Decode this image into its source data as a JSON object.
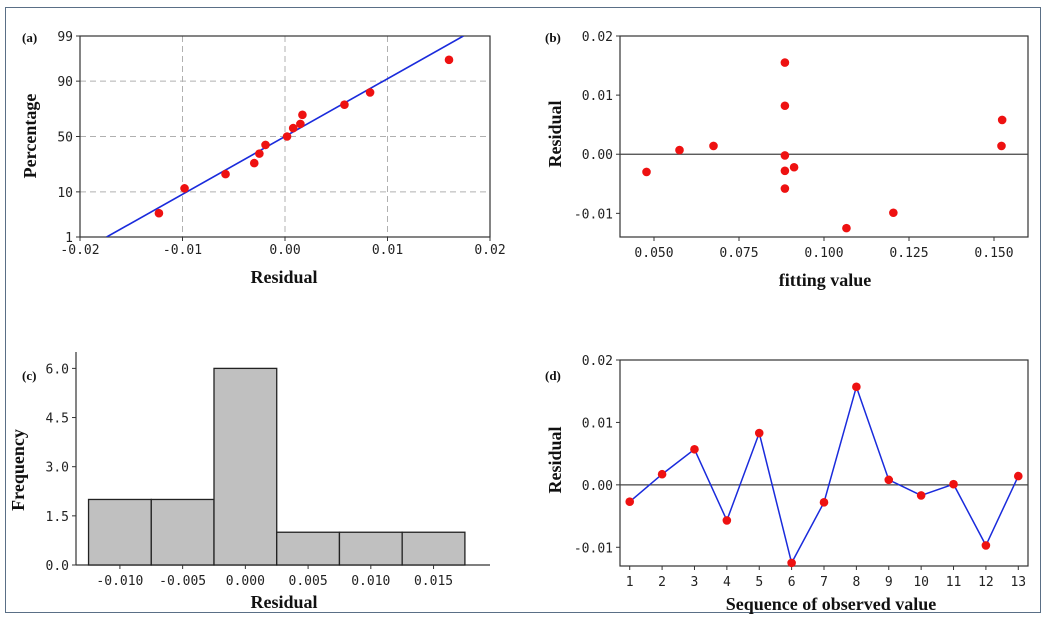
{
  "chart_data": [
    {
      "panel": "(a)",
      "type": "scatter",
      "xlabel": "Residual",
      "ylabel": "Percentage",
      "xlim": [
        -0.02,
        0.02
      ],
      "xticks": [
        -0.02,
        -0.01,
        0.0,
        0.01,
        0.02
      ],
      "xtick_labels": [
        "-0.02",
        "-0.01",
        "0.00",
        "0.01",
        "0.02"
      ],
      "yticks": [
        1,
        10,
        50,
        90,
        99
      ],
      "ytick_labels": [
        "1",
        "10",
        "50",
        "90",
        "99"
      ],
      "y_scale": "normal-probability",
      "grid": true,
      "points": [
        {
          "x": -0.0123,
          "y": 3.8
        },
        {
          "x": -0.0098,
          "y": 11.5
        },
        {
          "x": -0.0058,
          "y": 19.2
        },
        {
          "x": -0.003,
          "y": 26.9
        },
        {
          "x": -0.0025,
          "y": 34.6
        },
        {
          "x": -0.0019,
          "y": 42.3
        },
        {
          "x": 0.0002,
          "y": 50.0
        },
        {
          "x": 0.0008,
          "y": 57.7
        },
        {
          "x": 0.0015,
          "y": 61.5
        },
        {
          "x": 0.0017,
          "y": 69.2
        },
        {
          "x": 0.0058,
          "y": 76.9
        },
        {
          "x": 0.0083,
          "y": 84.6
        },
        {
          "x": 0.016,
          "y": 96.2
        }
      ],
      "fit_line": [
        {
          "x": -0.0174,
          "y": 1
        },
        {
          "x": 0.0174,
          "y": 99
        }
      ],
      "point_color": "#ee1111",
      "line_color": "#1a2bdc"
    },
    {
      "panel": "(b)",
      "type": "scatter",
      "xlabel": "fitting value",
      "ylabel": "Residual",
      "xlim": [
        0.04,
        0.16
      ],
      "ylim": [
        -0.014,
        0.02
      ],
      "xticks": [
        0.05,
        0.075,
        0.1,
        0.125,
        0.15
      ],
      "xtick_labels": [
        "0.050",
        "0.075",
        "0.100",
        "0.125",
        "0.150"
      ],
      "yticks": [
        -0.01,
        0.0,
        0.01,
        0.02
      ],
      "ytick_labels": [
        "-0.01",
        "0.00",
        "0.01",
        "0.02"
      ],
      "reference_line": 0,
      "points": [
        {
          "x": 0.0478,
          "y": -0.003
        },
        {
          "x": 0.0575,
          "y": 0.0007
        },
        {
          "x": 0.0675,
          "y": 0.0014
        },
        {
          "x": 0.0885,
          "y": 0.0155
        },
        {
          "x": 0.0885,
          "y": 0.0082
        },
        {
          "x": 0.0885,
          "y": -0.0002
        },
        {
          "x": 0.0885,
          "y": -0.0028
        },
        {
          "x": 0.0885,
          "y": -0.0058
        },
        {
          "x": 0.0912,
          "y": -0.0022
        },
        {
          "x": 0.1066,
          "y": -0.0125
        },
        {
          "x": 0.1204,
          "y": -0.0099
        },
        {
          "x": 0.1524,
          "y": 0.0058
        },
        {
          "x": 0.1522,
          "y": 0.0014
        }
      ],
      "point_color": "#ee1111"
    },
    {
      "panel": "(c)",
      "type": "bar",
      "xlabel": "Residual",
      "ylabel": "Frequency",
      "xlim": [
        -0.0135,
        0.0195
      ],
      "ylim": [
        0,
        6.5
      ],
      "xticks": [
        -0.01,
        -0.005,
        0.0,
        0.005,
        0.01,
        0.015
      ],
      "xtick_labels": [
        "-0.010",
        "-0.005",
        "0.000",
        "0.005",
        "0.010",
        "0.015"
      ],
      "yticks": [
        0,
        1.5,
        3.0,
        4.5,
        6.0
      ],
      "ytick_labels": [
        "0.0",
        "1.5",
        "3.0",
        "4.5",
        "6.0"
      ],
      "bin_centers": [
        -0.01,
        -0.005,
        0.0,
        0.005,
        0.01,
        0.015
      ],
      "bin_width": 0.005,
      "values": [
        2,
        2,
        6,
        1,
        1,
        1
      ],
      "bar_color": "#c0c0c0"
    },
    {
      "panel": "(d)",
      "type": "line",
      "xlabel": "Sequence of observed value",
      "ylabel": "Residual",
      "xlim": [
        0.7,
        13.3
      ],
      "ylim": [
        -0.013,
        0.02
      ],
      "x": [
        1,
        2,
        3,
        4,
        5,
        6,
        7,
        8,
        9,
        10,
        11,
        12,
        13
      ],
      "xtick_labels": [
        "1",
        "2",
        "3",
        "4",
        "5",
        "6",
        "7",
        "8",
        "9",
        "10",
        "11",
        "12",
        "13"
      ],
      "yticks": [
        -0.01,
        0.0,
        0.01,
        0.02
      ],
      "ytick_labels": [
        "-0.01",
        "0.00",
        "0.01",
        "0.02"
      ],
      "values": [
        -0.0027,
        0.0017,
        0.0057,
        -0.0057,
        0.0083,
        -0.0125,
        -0.0028,
        0.0157,
        0.0008,
        -0.0017,
        0.0001,
        -0.0097,
        0.0014
      ],
      "reference_line": 0,
      "point_color": "#ee1111",
      "line_color": "#1a2bdc"
    }
  ]
}
